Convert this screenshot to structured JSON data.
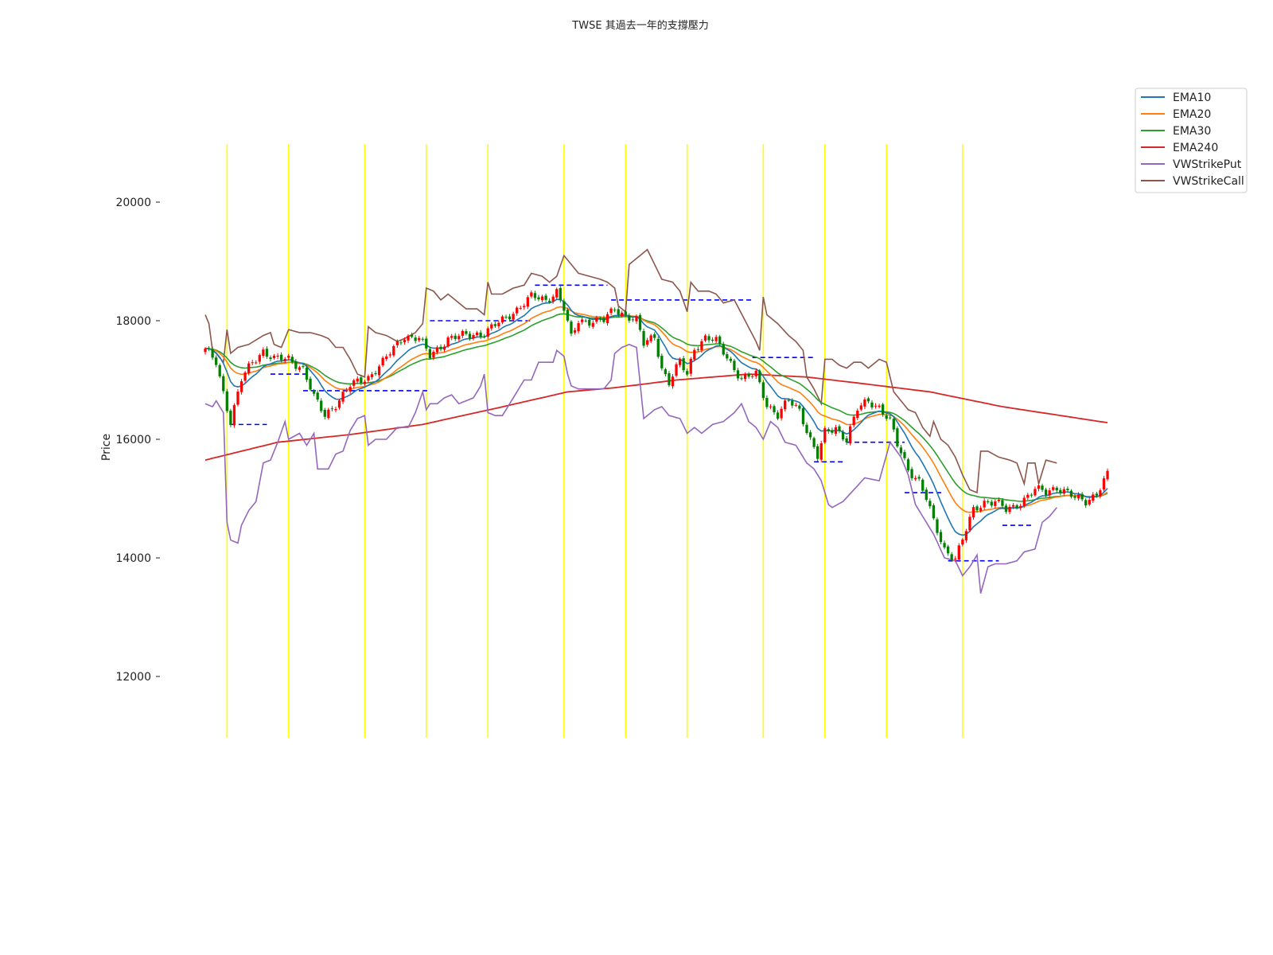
{
  "chart_data": {
    "type": "candlestick",
    "title": "TWSE 其過去一年的支撐壓力",
    "ylabel": "Price",
    "ylim": [
      11200,
      21200
    ],
    "yticks": [
      12000,
      14000,
      16000,
      18000,
      20000
    ],
    "tick_labels": [
      "12000",
      "14000",
      "16000",
      "18000",
      "20000"
    ],
    "legend": {
      "placement": "top-right",
      "entries": [
        {
          "name": "EMA10",
          "color": "#1f77b4"
        },
        {
          "name": "EMA20",
          "color": "#ff7f0e"
        },
        {
          "name": "EMA30",
          "color": "#2ca02c"
        },
        {
          "name": "EMA240",
          "color": "#d62728"
        },
        {
          "name": "VWStrikePut",
          "color": "#9467bd"
        },
        {
          "name": "VWStrikeCall",
          "color": "#8c564b"
        }
      ]
    },
    "colors": {
      "up": "#ff0000",
      "down": "#008000",
      "month_marker": "#ffff00",
      "support_resistance": "#0000ff"
    },
    "bar_count": 250,
    "month_marker_bars": [
      6,
      23,
      44,
      61,
      78,
      99,
      116,
      133,
      154,
      171,
      188,
      209
    ],
    "support_resistance_levels": [
      {
        "from": 7,
        "to": 17,
        "price": 16250
      },
      {
        "from": 18,
        "to": 28,
        "price": 17100
      },
      {
        "from": 27,
        "to": 62,
        "price": 16820
      },
      {
        "from": 62,
        "to": 90,
        "price": 18000
      },
      {
        "from": 91,
        "to": 111,
        "price": 18600
      },
      {
        "from": 112,
        "to": 151,
        "price": 18350
      },
      {
        "from": 151,
        "to": 168,
        "price": 17380
      },
      {
        "from": 168,
        "to": 176,
        "price": 15620
      },
      {
        "from": 177,
        "to": 193,
        "price": 15950
      },
      {
        "from": 193,
        "to": 204,
        "price": 15100
      },
      {
        "from": 205,
        "to": 219,
        "price": 13950
      },
      {
        "from": 220,
        "to": 228,
        "price": 14550
      }
    ],
    "close_anchors": [
      [
        0,
        17500
      ],
      [
        3,
        17300
      ],
      [
        5,
        16800
      ],
      [
        7,
        16300
      ],
      [
        10,
        17000
      ],
      [
        13,
        17300
      ],
      [
        16,
        17500
      ],
      [
        19,
        17350
      ],
      [
        23,
        17350
      ],
      [
        27,
        17200
      ],
      [
        30,
        16700
      ],
      [
        33,
        16400
      ],
      [
        36,
        16600
      ],
      [
        40,
        16900
      ],
      [
        45,
        17050
      ],
      [
        49,
        17300
      ],
      [
        55,
        17750
      ],
      [
        59,
        17700
      ],
      [
        62,
        17400
      ],
      [
        67,
        17700
      ],
      [
        72,
        17750
      ],
      [
        77,
        17800
      ],
      [
        82,
        18000
      ],
      [
        86,
        18200
      ],
      [
        90,
        18400
      ],
      [
        94,
        18350
      ],
      [
        97,
        18500
      ],
      [
        99,
        18200
      ],
      [
        101,
        17700
      ],
      [
        103,
        18000
      ],
      [
        110,
        18000
      ],
      [
        113,
        18200
      ],
      [
        116,
        18100
      ],
      [
        119,
        18000
      ],
      [
        121,
        17600
      ],
      [
        124,
        17750
      ],
      [
        126,
        17200
      ],
      [
        128,
        16950
      ],
      [
        131,
        17300
      ],
      [
        133,
        17100
      ],
      [
        135,
        17550
      ],
      [
        138,
        17700
      ],
      [
        141,
        17650
      ],
      [
        144,
        17400
      ],
      [
        148,
        17000
      ],
      [
        152,
        17100
      ],
      [
        155,
        16600
      ],
      [
        158,
        16400
      ],
      [
        161,
        16650
      ],
      [
        164,
        16500
      ],
      [
        167,
        16000
      ],
      [
        169,
        15700
      ],
      [
        171,
        16100
      ],
      [
        174,
        16200
      ],
      [
        177,
        16000
      ],
      [
        180,
        16500
      ],
      [
        183,
        16650
      ],
      [
        186,
        16550
      ],
      [
        189,
        16300
      ],
      [
        191,
        15900
      ],
      [
        194,
        15500
      ],
      [
        197,
        15300
      ],
      [
        199,
        15000
      ],
      [
        201,
        14600
      ],
      [
        204,
        14150
      ],
      [
        207,
        14000
      ],
      [
        209,
        14300
      ],
      [
        212,
        14800
      ],
      [
        215,
        14950
      ],
      [
        218,
        14950
      ],
      [
        221,
        14800
      ],
      [
        223,
        14850
      ],
      [
        226,
        15000
      ],
      [
        229,
        15150
      ],
      [
        232,
        15100
      ],
      [
        235,
        15200
      ],
      [
        238,
        15100
      ],
      [
        240,
        15000
      ],
      [
        243,
        14950
      ],
      [
        246,
        15100
      ],
      [
        249,
        15400
      ]
    ],
    "ema240_anchors": [
      [
        0,
        15650
      ],
      [
        20,
        15950
      ],
      [
        40,
        16080
      ],
      [
        60,
        16250
      ],
      [
        80,
        16520
      ],
      [
        100,
        16800
      ],
      [
        113,
        16870
      ],
      [
        130,
        17000
      ],
      [
        150,
        17100
      ],
      [
        166,
        17050
      ],
      [
        180,
        16950
      ],
      [
        200,
        16800
      ],
      [
        220,
        16550
      ],
      [
        249,
        16280
      ]
    ],
    "vw_put_anchors": [
      [
        0,
        16600
      ],
      [
        2,
        16550
      ],
      [
        3,
        16650
      ],
      [
        5,
        16450
      ],
      [
        6,
        14600
      ],
      [
        7,
        14300
      ],
      [
        9,
        14250
      ],
      [
        10,
        14550
      ],
      [
        12,
        14800
      ],
      [
        14,
        14950
      ],
      [
        16,
        15600
      ],
      [
        18,
        15650
      ],
      [
        19,
        15800
      ],
      [
        20,
        15950
      ],
      [
        22,
        16300
      ],
      [
        23,
        16000
      ],
      [
        26,
        16100
      ],
      [
        28,
        15900
      ],
      [
        30,
        16100
      ],
      [
        31,
        15500
      ],
      [
        34,
        15500
      ],
      [
        36,
        15750
      ],
      [
        38,
        15800
      ],
      [
        40,
        16150
      ],
      [
        42,
        16350
      ],
      [
        44,
        16400
      ],
      [
        45,
        15900
      ],
      [
        47,
        16000
      ],
      [
        50,
        16000
      ],
      [
        53,
        16200
      ],
      [
        56,
        16200
      ],
      [
        58,
        16450
      ],
      [
        60,
        16800
      ],
      [
        61,
        16500
      ],
      [
        62,
        16600
      ],
      [
        64,
        16600
      ],
      [
        66,
        16700
      ],
      [
        68,
        16750
      ],
      [
        70,
        16600
      ],
      [
        74,
        16700
      ],
      [
        76,
        16900
      ],
      [
        77,
        17100
      ],
      [
        78,
        16450
      ],
      [
        80,
        16400
      ],
      [
        82,
        16400
      ],
      [
        84,
        16600
      ],
      [
        86,
        16800
      ],
      [
        88,
        17000
      ],
      [
        90,
        17000
      ],
      [
        92,
        17300
      ],
      [
        94,
        17300
      ],
      [
        96,
        17300
      ],
      [
        97,
        17500
      ],
      [
        99,
        17400
      ],
      [
        100,
        17100
      ],
      [
        101,
        16900
      ],
      [
        103,
        16850
      ],
      [
        110,
        16850
      ],
      [
        112,
        17000
      ],
      [
        113,
        17450
      ],
      [
        115,
        17550
      ],
      [
        117,
        17600
      ],
      [
        119,
        17550
      ],
      [
        121,
        16350
      ],
      [
        124,
        16500
      ],
      [
        126,
        16550
      ],
      [
        128,
        16400
      ],
      [
        131,
        16350
      ],
      [
        133,
        16100
      ],
      [
        135,
        16200
      ],
      [
        137,
        16100
      ],
      [
        140,
        16250
      ],
      [
        143,
        16300
      ],
      [
        146,
        16450
      ],
      [
        148,
        16600
      ],
      [
        150,
        16300
      ],
      [
        152,
        16200
      ],
      [
        154,
        16000
      ],
      [
        156,
        16300
      ],
      [
        158,
        16200
      ],
      [
        160,
        15950
      ],
      [
        163,
        15900
      ],
      [
        166,
        15600
      ],
      [
        168,
        15500
      ],
      [
        170,
        15300
      ],
      [
        172,
        14900
      ],
      [
        173,
        14850
      ],
      [
        176,
        14950
      ],
      [
        179,
        15150
      ],
      [
        182,
        15350
      ],
      [
        186,
        15300
      ],
      [
        189,
        15950
      ],
      [
        192,
        15700
      ],
      [
        194,
        15400
      ],
      [
        196,
        14900
      ],
      [
        198,
        14700
      ],
      [
        201,
        14400
      ],
      [
        204,
        14000
      ],
      [
        207,
        13950
      ],
      [
        209,
        13700
      ],
      [
        211,
        13850
      ],
      [
        213,
        14050
      ],
      [
        214,
        13400
      ],
      [
        216,
        13850
      ],
      [
        218,
        13900
      ],
      [
        221,
        13900
      ],
      [
        224,
        13950
      ],
      [
        226,
        14100
      ],
      [
        229,
        14150
      ],
      [
        231,
        14600
      ],
      [
        233,
        14700
      ],
      [
        235,
        14850
      ]
    ],
    "vw_call_anchors": [
      [
        0,
        18100
      ],
      [
        1,
        17950
      ],
      [
        2,
        17500
      ],
      [
        3,
        17450
      ],
      [
        5,
        17300
      ],
      [
        6,
        17850
      ],
      [
        7,
        17450
      ],
      [
        9,
        17550
      ],
      [
        12,
        17600
      ],
      [
        16,
        17750
      ],
      [
        18,
        17800
      ],
      [
        19,
        17600
      ],
      [
        21,
        17550
      ],
      [
        23,
        17850
      ],
      [
        26,
        17800
      ],
      [
        29,
        17800
      ],
      [
        32,
        17750
      ],
      [
        34,
        17700
      ],
      [
        36,
        17550
      ],
      [
        38,
        17550
      ],
      [
        40,
        17350
      ],
      [
        42,
        17100
      ],
      [
        44,
        17050
      ],
      [
        45,
        17900
      ],
      [
        47,
        17800
      ],
      [
        50,
        17750
      ],
      [
        53,
        17650
      ],
      [
        55,
        17700
      ],
      [
        58,
        17800
      ],
      [
        60,
        17950
      ],
      [
        61,
        18550
      ],
      [
        63,
        18500
      ],
      [
        65,
        18350
      ],
      [
        67,
        18450
      ],
      [
        69,
        18350
      ],
      [
        72,
        18200
      ],
      [
        75,
        18200
      ],
      [
        77,
        18100
      ],
      [
        78,
        18650
      ],
      [
        79,
        18450
      ],
      [
        82,
        18450
      ],
      [
        85,
        18550
      ],
      [
        88,
        18600
      ],
      [
        90,
        18800
      ],
      [
        93,
        18750
      ],
      [
        95,
        18650
      ],
      [
        97,
        18750
      ],
      [
        99,
        19100
      ],
      [
        101,
        18950
      ],
      [
        103,
        18800
      ],
      [
        106,
        18750
      ],
      [
        109,
        18700
      ],
      [
        111,
        18650
      ],
      [
        113,
        18550
      ],
      [
        114,
        18250
      ],
      [
        116,
        18150
      ],
      [
        117,
        18950
      ],
      [
        119,
        19050
      ],
      [
        122,
        19200
      ],
      [
        124,
        18950
      ],
      [
        126,
        18700
      ],
      [
        129,
        18650
      ],
      [
        131,
        18500
      ],
      [
        133,
        18150
      ],
      [
        134,
        18650
      ],
      [
        136,
        18500
      ],
      [
        139,
        18500
      ],
      [
        141,
        18450
      ],
      [
        143,
        18300
      ],
      [
        146,
        18350
      ],
      [
        149,
        18000
      ],
      [
        152,
        17650
      ],
      [
        153,
        17500
      ],
      [
        154,
        18400
      ],
      [
        155,
        18100
      ],
      [
        158,
        17950
      ],
      [
        161,
        17750
      ],
      [
        163,
        17650
      ],
      [
        165,
        17500
      ],
      [
        166,
        17050
      ],
      [
        168,
        16850
      ],
      [
        170,
        16600
      ],
      [
        171,
        17350
      ],
      [
        173,
        17350
      ],
      [
        175,
        17250
      ],
      [
        177,
        17200
      ],
      [
        179,
        17300
      ],
      [
        181,
        17300
      ],
      [
        183,
        17200
      ],
      [
        186,
        17350
      ],
      [
        188,
        17300
      ],
      [
        190,
        16800
      ],
      [
        192,
        16650
      ],
      [
        194,
        16500
      ],
      [
        196,
        16450
      ],
      [
        198,
        16200
      ],
      [
        200,
        16050
      ],
      [
        201,
        16300
      ],
      [
        203,
        16000
      ],
      [
        205,
        15900
      ],
      [
        207,
        15700
      ],
      [
        209,
        15400
      ],
      [
        211,
        15150
      ],
      [
        213,
        15100
      ],
      [
        214,
        15800
      ],
      [
        216,
        15800
      ],
      [
        219,
        15700
      ],
      [
        222,
        15650
      ],
      [
        224,
        15600
      ],
      [
        226,
        15250
      ],
      [
        227,
        15600
      ],
      [
        229,
        15600
      ],
      [
        230,
        15250
      ],
      [
        232,
        15650
      ],
      [
        235,
        15600
      ]
    ]
  }
}
